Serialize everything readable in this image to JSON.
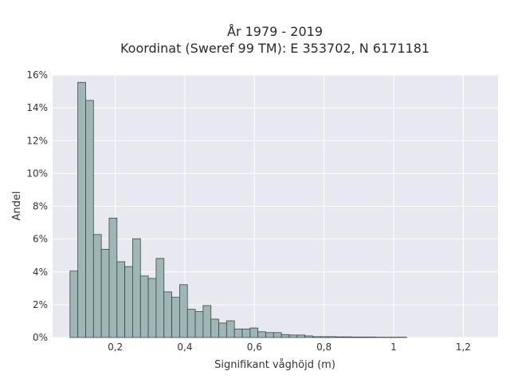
{
  "chart_data": {
    "type": "bar",
    "title_lines": [
      "År 1979 - 2019",
      "Koordinat (Sweref 99 TM): E 353702, N 6171181"
    ],
    "xlabel": "Signifikant våghöjd (m)",
    "ylabel": "Andel",
    "xlim": [
      0.02,
      1.3
    ],
    "ylim": [
      0,
      0.16
    ],
    "x_ticks": [
      0.2,
      0.4,
      0.6,
      0.8,
      1,
      1.2
    ],
    "x_tick_labels": [
      "0,2",
      "0,4",
      "0,6",
      "0,8",
      "1",
      "1,2"
    ],
    "y_ticks": [
      0,
      0.02,
      0.04,
      0.06,
      0.08,
      0.1,
      0.12,
      0.14,
      0.16
    ],
    "y_tick_labels": [
      "0%",
      "2%",
      "4%",
      "6%",
      "8%",
      "10%",
      "12%",
      "14%",
      "16%"
    ],
    "bin_start": 0.07,
    "bin_width": 0.0225,
    "values": [
      0.0405,
      0.1555,
      0.1445,
      0.0628,
      0.0538,
      0.0728,
      0.0462,
      0.0432,
      0.0602,
      0.0375,
      0.036,
      0.0482,
      0.0278,
      0.0245,
      0.0322,
      0.0172,
      0.0158,
      0.0195,
      0.0112,
      0.0088,
      0.0102,
      0.0052,
      0.0052,
      0.0058,
      0.0035,
      0.003,
      0.003,
      0.0018,
      0.0015,
      0.0015,
      0.001,
      0.0005,
      0.0005,
      0.0005,
      0.0004,
      0.0004,
      0.0003,
      0.0003,
      0.0003,
      0.0002,
      0.0002,
      0.0002,
      0.0002
    ],
    "grid": true,
    "colors": {
      "bar_fill": "#9fb6b7",
      "bar_stroke": "#3a4646",
      "plot_background": "#e8e8f0",
      "grid": "#ffffff"
    }
  }
}
